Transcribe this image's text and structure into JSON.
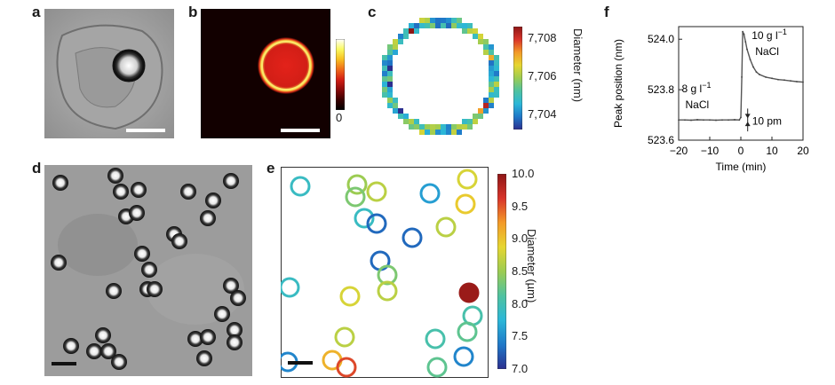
{
  "figure": {
    "panels": [
      {
        "label": "a"
      },
      {
        "label": "b"
      },
      {
        "label": "c"
      },
      {
        "label": "d"
      },
      {
        "label": "e"
      },
      {
        "label": "f"
      }
    ]
  },
  "panel_b": {
    "colorbar_ticks": [
      "0"
    ],
    "colormap": [
      "#000000",
      "#3a0000",
      "#8a0a0a",
      "#d41e14",
      "#f06a1a",
      "#f8c020",
      "#fafa60",
      "#ffffff"
    ]
  },
  "panel_c": {
    "colorbar_label": "Diameter (nm)",
    "colorbar_ticks": [
      "7,708",
      "7,706",
      "7,704"
    ],
    "colorbar_tick_values": [
      7708,
      7706,
      7704
    ],
    "colorbar_range": [
      7703.2,
      7708.6
    ]
  },
  "panel_e": {
    "colorbar_label": "Diameter (µm)",
    "colorbar_ticks": [
      "10.0",
      "9.5",
      "9.0",
      "8.5",
      "8.0",
      "7.5",
      "7.0"
    ],
    "colorbar_tick_values": [
      10.0,
      9.5,
      9.0,
      8.5,
      8.0,
      7.5,
      7.0
    ],
    "colorbar_range": [
      7.0,
      10.0
    ]
  },
  "chart_data": [
    {
      "type": "line",
      "panel": "f",
      "xlabel": "Time (min)",
      "ylabel": "Peak position (nm)",
      "xlim": [
        -20,
        20
      ],
      "ylim": [
        523.6,
        524.05
      ],
      "xticks": [
        -20,
        -10,
        0,
        10,
        20
      ],
      "xtick_labels": [
        "−20",
        "−10",
        "0",
        "10",
        "20"
      ],
      "yticks": [
        523.6,
        523.8,
        524.0
      ],
      "ytick_labels": [
        "523.6",
        "523.8",
        "524.0"
      ],
      "annotations": [
        {
          "line1": "8 g l",
          "sup": "−1",
          "line2": "NaCl"
        },
        {
          "line1": "10 g l",
          "sup": "−1",
          "line2": "NaCl"
        },
        {
          "text": "10 pm"
        }
      ],
      "series": [
        {
          "x": [
            -20,
            -18,
            -16,
            -14,
            -12,
            -10,
            -8,
            -6,
            -4,
            -2,
            -0.5,
            0,
            0.3,
            0.6,
            1,
            1.5,
            2,
            3,
            4,
            5,
            6,
            8,
            10,
            12,
            14,
            16,
            18,
            20
          ],
          "y": [
            523.68,
            523.68,
            523.679,
            523.681,
            523.68,
            523.68,
            523.679,
            523.68,
            523.68,
            523.681,
            523.68,
            523.69,
            523.85,
            524.03,
            524.02,
            523.99,
            523.96,
            523.92,
            523.89,
            523.87,
            523.86,
            523.85,
            523.845,
            523.84,
            523.838,
            523.835,
            523.832,
            523.83
          ]
        }
      ]
    }
  ]
}
